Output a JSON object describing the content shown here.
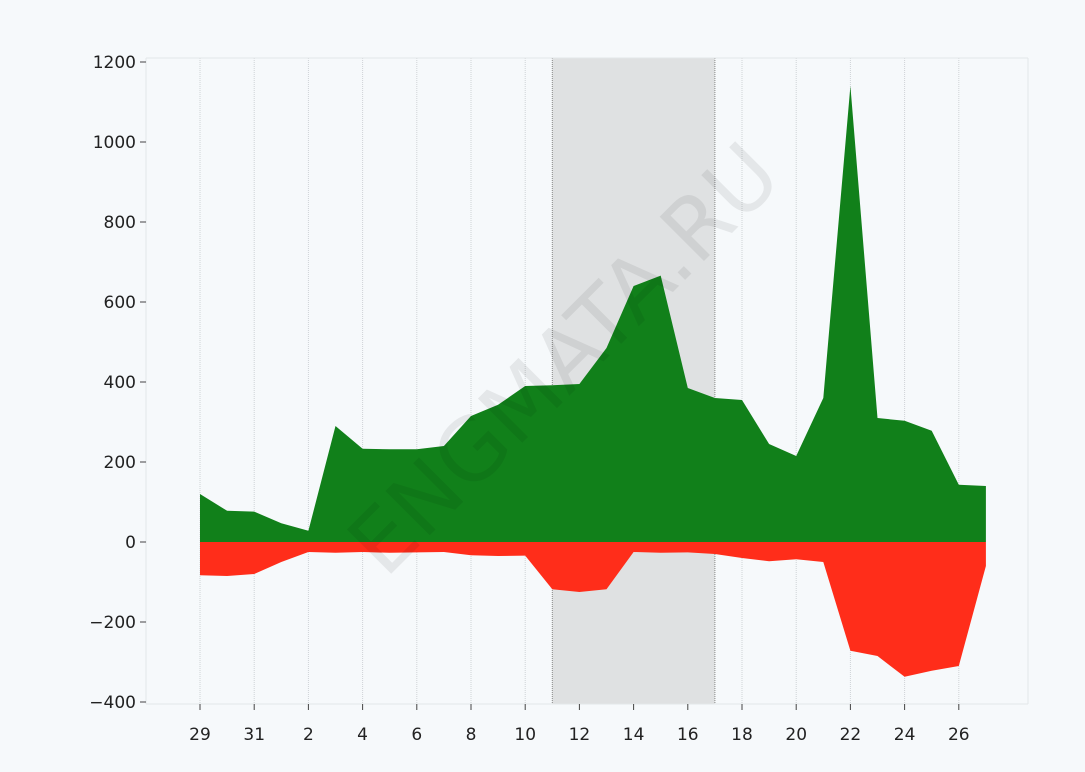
{
  "chart_data": {
    "type": "area",
    "x": [
      29,
      30,
      31,
      1,
      2,
      3,
      4,
      5,
      6,
      7,
      8,
      9,
      10,
      11,
      12,
      13,
      14,
      15,
      16,
      17,
      18,
      19,
      20,
      21,
      22,
      23,
      24,
      25,
      26,
      27
    ],
    "x_tick_labels": [
      "29",
      "31",
      "2",
      "4",
      "6",
      "8",
      "10",
      "12",
      "14",
      "16",
      "18",
      "20",
      "22",
      "24",
      "26"
    ],
    "series": [
      {
        "color": "#11801a",
        "values": [
          120,
          78,
          76,
          47,
          28,
          290,
          233,
          232,
          232,
          240,
          315,
          343,
          390,
          392,
          395,
          485,
          640,
          666,
          385,
          360,
          355,
          245,
          215,
          360,
          1140,
          310,
          303,
          278,
          143,
          140
        ]
      },
      {
        "color": "#ff2d1a",
        "values": [
          -83,
          -85,
          -80,
          -50,
          -25,
          -27,
          -25,
          -27,
          -26,
          -25,
          -33,
          -35,
          -34,
          -118,
          -125,
          -118,
          -25,
          -27,
          -26,
          -30,
          -40,
          -48,
          -43,
          -50,
          -272,
          -285,
          -337,
          -322,
          -310,
          -60
        ]
      }
    ],
    "y_ticks": [
      1200,
      1000,
      800,
      600,
      400,
      200,
      0,
      -200,
      -400
    ],
    "y_tick_labels": [
      "1200",
      "1000",
      "800",
      "600",
      "400",
      "200",
      "0",
      "−200",
      "−400"
    ],
    "ylim": [
      -400,
      1200
    ],
    "highlight_span": {
      "from": 11,
      "to": 17,
      "color": "#dfe1e2"
    },
    "grid": "vertical",
    "legend": "none",
    "watermark": "ENGMATA.RU"
  }
}
